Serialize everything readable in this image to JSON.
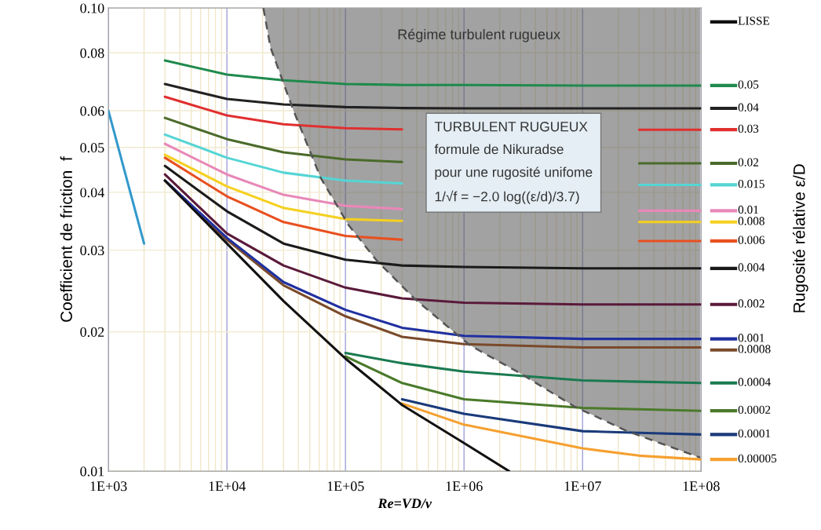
{
  "chart_data": {
    "type": "line",
    "xlabel": "Re=VD/v",
    "ylabel": "Coefficient de friction  f",
    "legend_title": "Rugosité rélative ε/D",
    "annotations": [
      "Régime turbulent rugueux",
      "TURBULENT RUGUEUX\nformule de Nikuradse\npour une rugosité unifome\n1/√f = −2.0 log((ε/d)/3.7)"
    ],
    "log": "xy",
    "grid": true,
    "xlim": [
      1000,
      100000000
    ],
    "ylim": [
      0.01,
      0.1
    ],
    "xticks": [
      {
        "value": 1000,
        "label": "1E+03"
      },
      {
        "value": 10000,
        "label": "1E+04"
      },
      {
        "value": 100000,
        "label": "1E+05"
      },
      {
        "value": 1000000,
        "label": "1E+06"
      },
      {
        "value": 10000000,
        "label": "1E+07"
      },
      {
        "value": 100000000,
        "label": "1E+08"
      }
    ],
    "yticks": [
      {
        "value": 0.01,
        "label": "0.01"
      },
      {
        "value": 0.02,
        "label": "0.02"
      },
      {
        "value": 0.03,
        "label": "0.03"
      },
      {
        "value": 0.04,
        "label": "0.04"
      },
      {
        "value": 0.05,
        "label": "0.05"
      },
      {
        "value": 0.06,
        "label": "0.06"
      },
      {
        "value": 0.08,
        "label": "0.08"
      },
      {
        "value": 0.1,
        "label": "0.10"
      }
    ],
    "x": [
      3000,
      10000,
      30000,
      100000,
      300000,
      1000000,
      10000000,
      30000000,
      100000000
    ],
    "legend": "right",
    "series": [
      {
        "color": "#555555",
        "line_style": "dashed",
        "x": [
          20300,
          23300,
          36300,
          62000,
          106000,
          181000,
          380000,
          1120000,
          3060000,
          8500000,
          23800000,
          98000000
        ],
        "values": [
          0.1,
          0.0822,
          0.0602,
          0.0429,
          0.034,
          0.0286,
          0.0236,
          0.0187,
          0.0162,
          0.0138,
          0.0122,
          0.0107
        ]
      },
      {
        "color": "#3399cc",
        "x": [
          1000,
          2000
        ],
        "values": [
          0.06,
          0.031
        ]
      },
      {
        "name": "LISSE",
        "color": "#111111",
        "x": [
          3000,
          10000,
          30000,
          100000,
          300000,
          1000000,
          2400000
        ],
        "values": [
          0.0424,
          0.031,
          0.0233,
          0.0175,
          0.0139,
          0.0115,
          0.01
        ]
      },
      {
        "name": "0.05",
        "color": "#1f8a4c",
        "values": [
          0.077,
          0.0718,
          0.0698,
          0.0685,
          0.0682,
          0.0682,
          0.068,
          0.068,
          0.068
        ]
      },
      {
        "name": "0.04",
        "color": "#222222",
        "values": [
          0.0685,
          0.0636,
          0.0619,
          0.0611,
          0.0608,
          0.0607,
          0.0607,
          0.0607,
          0.0607
        ]
      },
      {
        "name": "0.03",
        "color": "#e03030",
        "values": [
          0.0643,
          0.0586,
          0.0561,
          0.055,
          0.0547,
          null,
          null,
          0.0546,
          0.0546
        ]
      },
      {
        "name": "0.02",
        "color": "#4a6a2a",
        "values": [
          0.0579,
          0.0521,
          0.0488,
          0.0471,
          0.0465,
          null,
          null,
          0.0462,
          0.0462
        ]
      },
      {
        "name": "0.015",
        "color": "#55d5d5",
        "values": [
          0.0533,
          0.0475,
          0.0441,
          0.0424,
          0.0418,
          null,
          null,
          0.0415,
          0.0415
        ]
      },
      {
        "name": "0.01",
        "color": "#e888b8",
        "values": [
          0.0509,
          0.0437,
          0.0395,
          0.0374,
          0.0368,
          null,
          null,
          0.0365,
          0.0365
        ]
      },
      {
        "name": "0.008",
        "color": "#f5d020",
        "values": [
          0.0482,
          0.0412,
          0.037,
          0.035,
          0.0347,
          null,
          null,
          0.0345,
          0.0345
        ]
      },
      {
        "name": "0.006",
        "color": "#e85020",
        "values": [
          0.0475,
          0.0392,
          0.0345,
          0.0322,
          0.0316,
          null,
          null,
          0.0314,
          0.0314
        ]
      },
      {
        "name": "0.004",
        "color": "#1a1a1a",
        "values": [
          0.0456,
          0.0364,
          0.031,
          0.0286,
          0.0278,
          0.0276,
          0.0274,
          0.0274,
          0.0274
        ]
      },
      {
        "name": "0.002",
        "color": "#5a1a3a",
        "values": [
          0.0437,
          0.0326,
          0.0278,
          0.0249,
          0.0236,
          0.0231,
          0.0229,
          0.0229,
          0.0229
        ]
      },
      {
        "name": "0.001",
        "color": "#2030a0",
        "values": [
          0.0424,
          0.0319,
          0.0256,
          0.0223,
          0.0204,
          0.0196,
          0.0193,
          0.0193,
          0.0193
        ]
      },
      {
        "name": "0.0008",
        "color": "#7a4a2a",
        "values": [
          0.0424,
          0.0316,
          0.0252,
          0.0216,
          0.0195,
          0.0188,
          0.0185,
          0.0185,
          0.0185
        ]
      },
      {
        "name": "0.0004",
        "color": "#1a7a50",
        "values": [
          null,
          null,
          null,
          0.018,
          0.0171,
          0.0164,
          0.0157,
          0.0156,
          0.0155
        ]
      },
      {
        "name": "0.0002",
        "color": "#4a7a2a",
        "values": [
          null,
          null,
          null,
          0.0177,
          0.0155,
          0.0143,
          0.0137,
          0.0136,
          0.0135
        ]
      },
      {
        "name": "0.0001",
        "color": "#1a3a7a",
        "values": [
          null,
          null,
          null,
          null,
          0.0143,
          0.0133,
          0.0122,
          0.0121,
          0.012
        ]
      },
      {
        "name": "0.00005",
        "color": "#f5a030",
        "values": [
          null,
          null,
          null,
          null,
          0.014,
          0.0126,
          0.0112,
          0.0108,
          0.0106
        ]
      }
    ]
  }
}
